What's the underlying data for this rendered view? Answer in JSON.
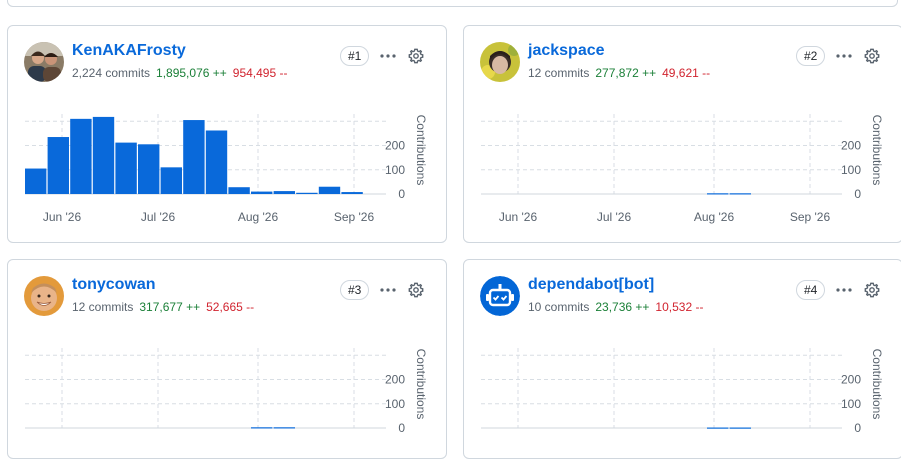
{
  "colors": {
    "bar": "#0969da",
    "link": "#0969da",
    "additions": "#1a7f37",
    "deletions": "#d1242f",
    "muted": "#59636e",
    "border": "#d0d7de"
  },
  "contributors": [
    {
      "login": "KenAKAFrosty",
      "commits": "2,224 commits",
      "additions": "1,895,076 ++",
      "deletions": "954,495 --",
      "rank": "#1",
      "avatar_icon": "couple-photo-avatar-icon"
    },
    {
      "login": "jackspace",
      "commits": "12 commits",
      "additions": "277,872 ++",
      "deletions": "49,621 --",
      "rank": "#2",
      "avatar_icon": "person-photo-avatar-icon"
    },
    {
      "login": "tonycowan",
      "commits": "12 commits",
      "additions": "317,677 ++",
      "deletions": "52,665 --",
      "rank": "#3",
      "avatar_icon": "smiling-person-avatar-icon"
    },
    {
      "login": "dependabot[bot]",
      "commits": "10 commits",
      "additions": "23,736 ++",
      "deletions": "10,532 --",
      "rank": "#4",
      "avatar_icon": "robot-avatar-icon"
    }
  ],
  "chart_data": [
    {
      "type": "bar",
      "ylabel": "Contributions",
      "yticks": [
        "0",
        "100",
        "200"
      ],
      "ylim": [
        0,
        330
      ],
      "x_ticks": [
        "Jun '26",
        "Jul '26",
        "Aug '26",
        "Sep '26"
      ],
      "values": [
        105,
        235,
        310,
        318,
        212,
        205,
        110,
        305,
        262,
        28,
        10,
        12,
        5,
        30,
        8
      ]
    },
    {
      "type": "bar",
      "ylabel": "Contributions",
      "yticks": [
        "0",
        "100",
        "200"
      ],
      "ylim": [
        0,
        330
      ],
      "x_ticks": [
        "Jun '26",
        "Jul '26",
        "Aug '26",
        "Sep '26"
      ],
      "values": [
        0,
        0,
        0,
        0,
        0,
        0,
        0,
        0,
        0,
        0,
        3,
        3,
        0,
        0,
        0
      ]
    },
    {
      "type": "bar",
      "ylabel": "Contributions",
      "yticks": [
        "0",
        "100",
        "200"
      ],
      "ylim": [
        0,
        330
      ],
      "x_ticks": [],
      "values": [
        0,
        0,
        0,
        0,
        0,
        0,
        0,
        0,
        0,
        0,
        3,
        3,
        0,
        0,
        0
      ]
    },
    {
      "type": "bar",
      "ylabel": "Contributions",
      "yticks": [
        "0",
        "100",
        "200"
      ],
      "ylim": [
        0,
        330
      ],
      "x_ticks": [],
      "values": [
        0,
        0,
        0,
        0,
        0,
        0,
        0,
        0,
        0,
        0,
        2,
        2,
        0,
        0,
        0
      ]
    }
  ]
}
